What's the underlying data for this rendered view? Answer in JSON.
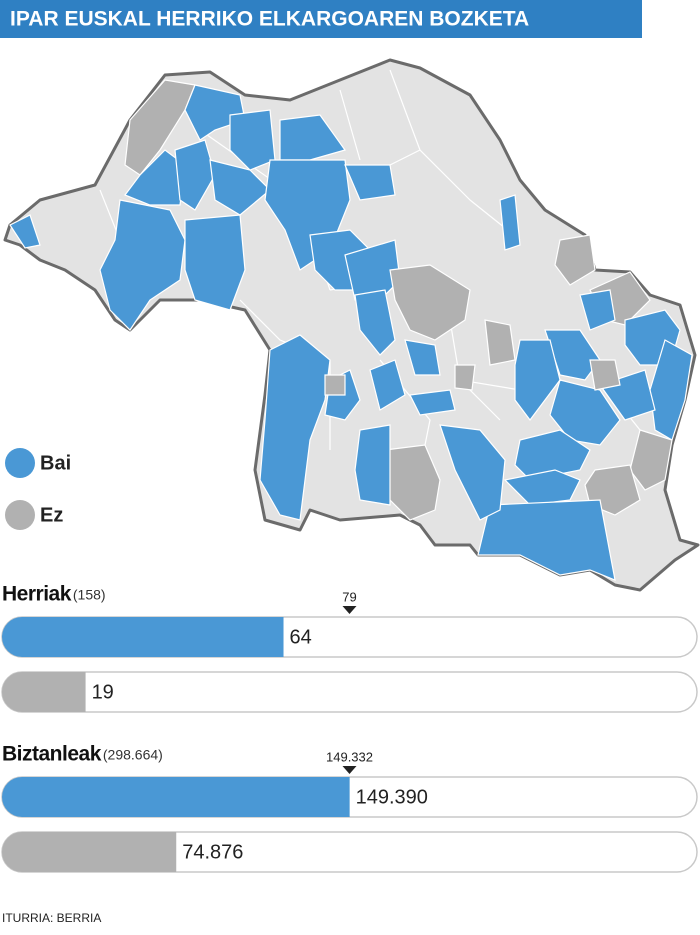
{
  "title": "IPAR EUSKAL HERRIKO ELKARGOAREN BOZKETA",
  "legend": [
    {
      "label": "Bai",
      "color": "#4a98d5"
    },
    {
      "label": "Ez",
      "color": "#b1b1b1"
    }
  ],
  "chart_data": [
    {
      "type": "bar",
      "title": "Herriak",
      "subtitle": "(158)",
      "xlim": [
        0,
        158
      ],
      "values": [
        64,
        19
      ],
      "marker": {
        "value": 79,
        "label": "79"
      }
    },
    {
      "type": "bar",
      "title": "Biztanleak",
      "subtitle": "(298.664)",
      "xlim": [
        0,
        298664
      ],
      "values": [
        149390,
        74876
      ],
      "value_labels": [
        "149.390",
        "74.876"
      ],
      "marker": {
        "value": 149332,
        "label": "149.332"
      }
    }
  ],
  "source": "ITURRIA: BERRIA"
}
